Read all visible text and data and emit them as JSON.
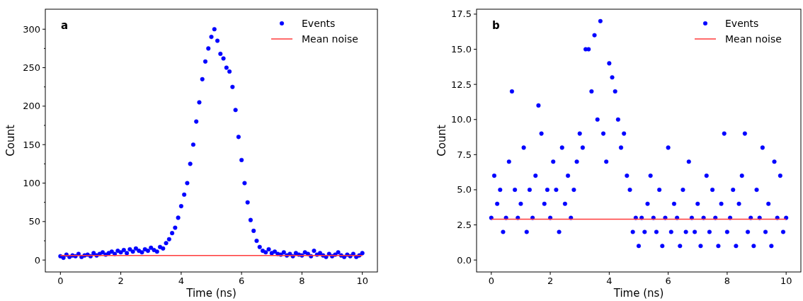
{
  "chart_data": [
    {
      "type": "scatter",
      "xlabel": "Time (ns)",
      "ylabel": "Count",
      "annotations": [
        "a"
      ],
      "legend": "top right",
      "marker": "circle",
      "grid": false,
      "xlim": [
        -0.5,
        10.5
      ],
      "xticks": [
        0,
        2,
        4,
        6,
        8,
        10
      ],
      "ylim": [
        -15.5,
        326
      ],
      "yticks": [
        0,
        {
          "value": 25,
          "label": null
        },
        50,
        {
          "value": 75,
          "label": null
        },
        100,
        {
          "value": 125,
          "label": null
        },
        150,
        {
          "value": 175,
          "label": null
        },
        200,
        {
          "value": 225,
          "label": null
        },
        250,
        {
          "value": 275,
          "label": null
        },
        300
      ],
      "series": [
        {
          "name": "Events",
          "color": "#0000ff",
          "x": [
            0,
            0.1,
            0.2,
            0.3,
            0.4,
            0.5,
            0.6,
            0.7,
            0.8,
            0.9,
            1,
            1.1,
            1.2,
            1.3,
            1.4,
            1.5,
            1.6,
            1.7,
            1.8,
            1.9,
            2,
            2.1,
            2.2,
            2.3,
            2.4,
            2.5,
            2.6,
            2.7,
            2.8,
            2.9,
            3,
            3.1,
            3.2,
            3.3,
            3.4,
            3.5,
            3.6,
            3.7,
            3.8,
            3.9,
            4,
            4.1,
            4.2,
            4.3,
            4.4,
            4.5,
            4.6,
            4.7,
            4.8,
            4.9,
            5,
            5.1,
            5.2,
            5.3,
            5.4,
            5.5,
            5.6,
            5.7,
            5.8,
            5.9,
            6,
            6.1,
            6.2,
            6.3,
            6.4,
            6.5,
            6.6,
            6.7,
            6.8,
            6.9,
            7,
            7.1,
            7.2,
            7.3,
            7.4,
            7.5,
            7.6,
            7.7,
            7.8,
            7.9,
            8,
            8.1,
            8.2,
            8.3,
            8.4,
            8.5,
            8.6,
            8.7,
            8.8,
            8.9,
            9,
            9.1,
            9.2,
            9.3,
            9.4,
            9.5,
            9.6,
            9.7,
            9.8,
            9.9,
            10
          ],
          "values": [
            5,
            3,
            7,
            4,
            6,
            5,
            8,
            4,
            6,
            7,
            5,
            9,
            6,
            8,
            10,
            7,
            9,
            11,
            8,
            12,
            10,
            13,
            9,
            14,
            11,
            15,
            12,
            10,
            14,
            12,
            16,
            13,
            11,
            17,
            15,
            22,
            27,
            35,
            42,
            55,
            70,
            85,
            100,
            125,
            150,
            180,
            205,
            235,
            258,
            275,
            290,
            300,
            285,
            268,
            262,
            250,
            245,
            225,
            195,
            160,
            130,
            100,
            75,
            52,
            38,
            25,
            17,
            12,
            10,
            14,
            9,
            11,
            8,
            7,
            10,
            6,
            8,
            5,
            9,
            7,
            6,
            10,
            8,
            5,
            12,
            7,
            9,
            6,
            4,
            8,
            5,
            7,
            10,
            6,
            4,
            7,
            5,
            8,
            4,
            6,
            9
          ]
        },
        {
          "name": "Mean noise",
          "type": "line",
          "color": "#ff3b3b",
          "x": [
            0,
            10
          ],
          "values": [
            6,
            6
          ],
          "marker": "none",
          "line_style": "solid"
        }
      ]
    },
    {
      "type": "scatter",
      "xlabel": "Time (ns)",
      "ylabel": "Count",
      "annotations": [
        "b"
      ],
      "legend": "top right",
      "marker": "circle",
      "grid": false,
      "xlim": [
        -0.5,
        10.5
      ],
      "xticks": [
        0,
        2,
        4,
        6,
        8,
        10
      ],
      "ylim": [
        -0.85,
        17.85
      ],
      "yticks": [
        {
          "value": 0,
          "label": "0.0"
        },
        {
          "value": 2.5,
          "label": "2.5"
        },
        {
          "value": 5,
          "label": "5.0"
        },
        {
          "value": 7.5,
          "label": "7.5"
        },
        {
          "value": 10,
          "label": "10.0"
        },
        {
          "value": 12.5,
          "label": "12.5"
        },
        {
          "value": 15,
          "label": "15.0"
        },
        {
          "value": 17.5,
          "label": "17.5"
        }
      ],
      "series": [
        {
          "name": "Events",
          "color": "#0000ff",
          "x": [
            0,
            0.1,
            0.2,
            0.3,
            0.4,
            0.5,
            0.6,
            0.7,
            0.8,
            0.9,
            1,
            1.1,
            1.2,
            1.3,
            1.4,
            1.5,
            1.6,
            1.7,
            1.8,
            1.9,
            2,
            2.1,
            2.2,
            2.3,
            2.4,
            2.5,
            2.6,
            2.7,
            2.8,
            2.9,
            3,
            3.1,
            3.2,
            3.3,
            3.4,
            3.5,
            3.6,
            3.7,
            3.8,
            3.9,
            4,
            4.1,
            4.2,
            4.3,
            4.4,
            4.5,
            4.6,
            4.7,
            4.8,
            4.9,
            5,
            5.1,
            5.2,
            5.3,
            5.4,
            5.5,
            5.6,
            5.7,
            5.8,
            5.9,
            6,
            6.1,
            6.2,
            6.3,
            6.4,
            6.5,
            6.6,
            6.7,
            6.8,
            6.9,
            7,
            7.1,
            7.2,
            7.3,
            7.4,
            7.5,
            7.6,
            7.7,
            7.8,
            7.9,
            8,
            8.1,
            8.2,
            8.3,
            8.4,
            8.5,
            8.6,
            8.7,
            8.8,
            8.9,
            9,
            9.1,
            9.2,
            9.3,
            9.4,
            9.5,
            9.6,
            9.7,
            9.8,
            9.9,
            10
          ],
          "values": [
            3,
            6,
            4,
            5,
            2,
            3,
            7,
            12,
            5,
            3,
            4,
            8,
            2,
            5,
            3,
            6,
            11,
            9,
            4,
            5,
            3,
            7,
            5,
            2,
            8,
            4,
            6,
            3,
            5,
            7,
            9,
            8,
            15,
            15,
            12,
            16,
            10,
            17,
            9,
            7,
            14,
            13,
            12,
            10,
            8,
            9,
            6,
            5,
            2,
            3,
            1,
            3,
            2,
            4,
            6,
            3,
            2,
            5,
            1,
            3,
            8,
            2,
            4,
            3,
            1,
            5,
            2,
            7,
            3,
            2,
            4,
            1,
            3,
            6,
            2,
            5,
            3,
            1,
            4,
            9,
            2,
            3,
            5,
            1,
            4,
            6,
            9,
            2,
            3,
            1,
            5,
            3,
            8,
            2,
            4,
            1,
            7,
            3,
            6,
            2,
            3
          ]
        },
        {
          "name": "Mean noise",
          "type": "line",
          "color": "#ff3b3b",
          "x": [
            0,
            10
          ],
          "values": [
            2.9,
            2.9
          ],
          "marker": "none",
          "line_style": "solid"
        }
      ]
    }
  ]
}
